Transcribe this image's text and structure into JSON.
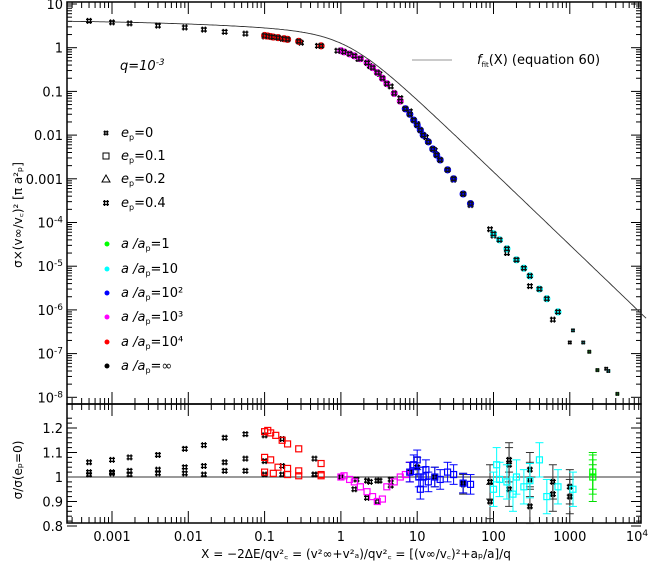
{
  "chart_data": [
    {
      "type": "scatter",
      "panel": "top",
      "title": "",
      "xlabel": "X = -2ΔE/qv_c^2 = (v_∞^2+v_a^2)/qv_c^2 = [(v_∞/v_c)^2+a_p/a]/q",
      "ylabel": "σ×(v_∞/v_c)^2 [π a_p^2]",
      "xscale": "log",
      "yscale": "log",
      "xlim": [
        0.0003,
        10000
      ],
      "ylim": [
        1e-08,
        10
      ],
      "x_tick_labels": [
        "0.001",
        "0.01",
        "0.1",
        "1",
        "10",
        "100",
        "1000",
        "10^4"
      ],
      "y_tick_labels": [
        "10",
        "1",
        "0.1",
        "0.01",
        "0.001",
        "10^-4",
        "10^-5",
        "10^-6",
        "10^-7",
        "10^-8"
      ],
      "annotation": "q=10^-3",
      "legend": {
        "line": "f_fit(X) (equation 60)",
        "markers": [
          "e_p=0",
          "e_p=0.1",
          "e_p=0.2",
          "e_p=0.4"
        ],
        "colors": [
          "a/a_p=1",
          "a/a_p=10",
          "a/a_p=10^2",
          "a/a_p=10^3",
          "a/a_p=10^4",
          "a/a_p=∞"
        ]
      },
      "series": [
        {
          "name": "a/a_p=∞",
          "color": "#000000",
          "x": [
            0.0005,
            0.001,
            0.0017,
            0.004,
            0.009,
            0.016,
            0.03,
            0.056,
            0.1,
            0.17,
            0.3,
            0.5,
            0.9,
            1.7,
            2.4,
            3.2,
            4.5,
            6,
            8,
            10,
            13,
            17,
            25,
            30,
            40,
            50,
            90,
            100,
            150,
            300,
            600,
            1000,
            3000
          ],
          "y": [
            4.1,
            3.8,
            3.6,
            3.2,
            2.9,
            2.6,
            2.3,
            2.1,
            1.8,
            1.6,
            1.3,
            1.1,
            0.85,
            0.55,
            0.38,
            0.25,
            0.13,
            0.07,
            0.035,
            0.018,
            0.009,
            0.0045,
            0.0016,
            0.00095,
            0.00045,
            0.00025,
            7e-05,
            5e-05,
            2e-05,
            3.5e-06,
            6e-07,
            1.8e-07,
            4.5e-08
          ]
        },
        {
          "name": "a/a_p=10^4",
          "color": "#ff0000",
          "x": [
            0.1,
            0.11,
            0.12,
            0.13,
            0.15,
            0.18,
            0.2,
            0.28,
            0.55
          ],
          "y": [
            1.9,
            1.85,
            1.8,
            1.75,
            1.7,
            1.6,
            1.55,
            1.4,
            1.1
          ]
        },
        {
          "name": "a/a_p=10^3",
          "color": "#ff00ff",
          "x": [
            1,
            1.1,
            1.3,
            1.5,
            1.8,
            2.2,
            2.6,
            3,
            3.5,
            4,
            5,
            6,
            7
          ],
          "y": [
            0.85,
            0.8,
            0.72,
            0.65,
            0.56,
            0.45,
            0.35,
            0.27,
            0.2,
            0.15,
            0.09,
            0.06,
            0.04
          ]
        },
        {
          "name": "a/a_p=10^2",
          "color": "#0000ff",
          "x": [
            7,
            8,
            9,
            10,
            11,
            12,
            14,
            16,
            18,
            20,
            25,
            30,
            40,
            50
          ],
          "y": [
            0.04,
            0.03,
            0.022,
            0.017,
            0.013,
            0.01,
            0.007,
            0.0048,
            0.0035,
            0.0027,
            0.0016,
            0.001,
            0.00045,
            0.00027
          ]
        },
        {
          "name": "a/a_p=10",
          "color": "#00ffff",
          "x": [
            100,
            120,
            150,
            200,
            250,
            300,
            400,
            500,
            700,
            1100,
            1500,
            3200
          ],
          "y": [
            5.5e-05,
            4e-05,
            2.5e-05,
            1.4e-05,
            9e-06,
            6e-06,
            3e-06,
            1.8e-06,
            9e-07,
            3.4e-07,
            1.8e-07,
            4e-08
          ]
        },
        {
          "name": "a/a_p=1",
          "color": "#00ff00",
          "x": [
            1800,
            2300,
            4200
          ],
          "y": [
            1.1e-07,
            4.2e-08,
            1.2e-08
          ]
        }
      ]
    },
    {
      "type": "scatter",
      "panel": "bottom",
      "ylabel": "σ/σ(e_p=0)",
      "xscale": "log",
      "yscale": "linear",
      "xlim": [
        0.0003,
        10000
      ],
      "ylim": [
        0.8,
        1.25
      ],
      "y_tick_labels": [
        "0.8",
        "0.9",
        "1",
        "1.1",
        "1.2"
      ],
      "x_tick_labels": [
        "0.001",
        "0.01",
        "0.1",
        "1",
        "10",
        "100",
        "1000",
        "10^4"
      ],
      "reference_line": 1,
      "series": [
        {
          "name": "e_p=0.4 (a/a_p=∞)",
          "color": "#000000",
          "x": [
            0.0005,
            0.001,
            0.0017,
            0.004,
            0.009,
            0.016,
            0.03,
            0.056,
            0.1,
            0.17,
            0.45,
            1,
            1.5,
            2.2,
            3,
            4.5,
            8,
            10,
            17,
            40,
            90,
            160,
            300,
            600,
            1000
          ],
          "y": [
            1.06,
            1.07,
            1.08,
            1.09,
            1.115,
            1.13,
            1.16,
            1.175,
            1.17,
            1.155,
            1.075,
            1.0,
            0.95,
            0.915,
            0.9,
            0.965,
            1.02,
            1.04,
            1.0,
            0.97,
            0.9,
            0.95,
            0.88,
            0.93,
            0.92
          ]
        },
        {
          "name": "e_p=0.2 (a/a_p=∞)",
          "color": "#000000",
          "x": [
            0.0005,
            0.001,
            0.0017,
            0.004,
            0.009,
            0.016,
            0.03,
            0.056,
            0.1,
            0.17,
            0.45,
            2.2,
            3,
            4.5,
            160,
            300
          ],
          "y": [
            1.02,
            1.02,
            1.025,
            1.03,
            1.04,
            1.045,
            1.06,
            1.075,
            1.065,
            1.045,
            1.01,
            0.985,
            0.985,
            0.99,
            1.05,
            0.99
          ]
        },
        {
          "name": "e_p=0.1 (a/a_p=∞)",
          "color": "#000000",
          "x": [
            0.0005,
            0.001,
            0.0017,
            0.004,
            0.009,
            0.016,
            0.03,
            0.056,
            0.1,
            0.17,
            0.45,
            1.6,
            2.4,
            3.2,
            40,
            90,
            160,
            300,
            600,
            1000
          ],
          "y": [
            1.01,
            1.015,
            1.01,
            1.015,
            1.015,
            1.01,
            1.025,
            1.025,
            1.01,
            1.01,
            1.01,
            0.99,
            0.98,
            0.985,
            0.975,
            0.98,
            1.07,
            1.03,
            0.98,
            0.96
          ]
        },
        {
          "name": "a/a_p=10^4",
          "color": "#ff0000",
          "x": [
            0.1,
            0.11,
            0.12,
            0.14,
            0.17,
            0.2,
            0.28,
            0.55,
            0.1,
            0.12,
            0.15,
            0.2,
            0.28,
            0.55,
            0.1,
            0.13,
            0.2,
            0.28,
            0.55
          ],
          "y": [
            1.185,
            1.19,
            1.18,
            1.17,
            1.15,
            1.135,
            1.115,
            1.055,
            1.08,
            1.07,
            1.04,
            1.035,
            1.025,
            1.01,
            1.02,
            1.015,
            1.01,
            1.005,
            1.005
          ]
        },
        {
          "name": "a/a_p=10^3",
          "color": "#ff00ff",
          "x": [
            1,
            1.1,
            1.3,
            1.5,
            1.8,
            2.2,
            2.6,
            3,
            3.5,
            4,
            5,
            6,
            7,
            8
          ],
          "y": [
            1.0,
            1.005,
            0.99,
            0.98,
            0.96,
            0.94,
            0.92,
            0.9,
            0.91,
            0.96,
            0.98,
            1.0,
            1.01,
            1.02
          ]
        },
        {
          "name": "a/a_p=10^2",
          "color": "#0000ff",
          "x": [
            8,
            9,
            10,
            10.5,
            11,
            12,
            13,
            14,
            17,
            20,
            25,
            30,
            40,
            50
          ],
          "y": [
            1.02,
            1.05,
            1.07,
            1.0,
            0.95,
            1.0,
            1.03,
            0.98,
            1.0,
            0.99,
            1.02,
            1.01,
            0.975,
            0.97
          ]
        },
        {
          "name": "a/a_p=10",
          "color": "#00ffff",
          "x": [
            100,
            110,
            120,
            150,
            180,
            200,
            250,
            300,
            400,
            500,
            700,
            1100
          ],
          "y": [
            0.95,
            1.05,
            0.99,
            0.98,
            0.93,
            1.0,
            0.96,
            0.985,
            1.07,
            0.92,
            0.96,
            0.95
          ]
        },
        {
          "name": "a/a_p=1",
          "color": "#00ff00",
          "x": [
            2000,
            2000
          ],
          "y": [
            1.02,
            1.0
          ]
        }
      ]
    }
  ],
  "labels": {
    "annotation_q": "q=10",
    "annotation_q_exp": "-3",
    "fit_legend": "f",
    "fit_legend_sub": "fit",
    "fit_legend_rest": "(X) (equation 60)",
    "x_axis_label": "X = −2ΔE/qv",
    "x_axis_label_full": "X = −2ΔE/qv²꜀ = (v²∞+v²ₐ)/qv²꜀ = [(v∞/v꜀)²+aₚ/a]/q",
    "y_axis_label_top": "σ×(v∞/v꜀)²  [π a²ₚ]",
    "y_axis_label_bottom": "σ/σ(eₚ=0)",
    "legend_ep": [
      "e",
      "e",
      "e",
      "e"
    ],
    "legend_ep_values": [
      "=0",
      "=0.1",
      "=0.2",
      "=0.4"
    ],
    "legend_a": [
      "=1",
      "=10",
      "=10²",
      "=10³",
      "=10⁴",
      "=∞"
    ],
    "legend_colors": [
      "#00ff00",
      "#00ffff",
      "#0000ff",
      "#ff00ff",
      "#ff0000",
      "#000000"
    ]
  }
}
